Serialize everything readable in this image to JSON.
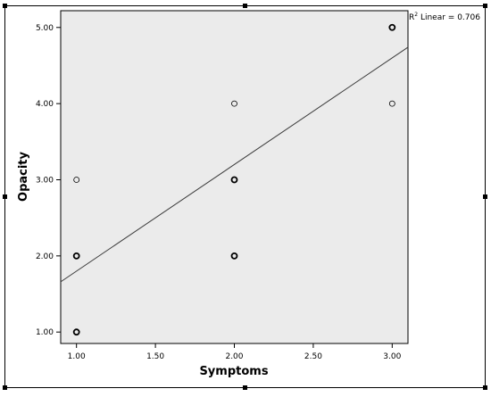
{
  "chart_data": {
    "type": "scatter",
    "xlabel": "Symptoms",
    "ylabel": "Opacity",
    "xlim": [
      0.9,
      3.1
    ],
    "ylim": [
      0.85,
      5.22
    ],
    "x_ticks": [
      "1.00",
      "1.50",
      "2.00",
      "2.50",
      "3.00"
    ],
    "y_ticks": [
      "1.00",
      "2.00",
      "3.00",
      "4.00",
      "5.00"
    ],
    "x_tick_values": [
      1.0,
      1.5,
      2.0,
      2.5,
      3.0
    ],
    "y_tick_values": [
      1.0,
      2.0,
      3.0,
      4.0,
      5.0
    ],
    "points": [
      {
        "x": 1.0,
        "y": 1.0,
        "overlap": true
      },
      {
        "x": 1.0,
        "y": 2.0,
        "overlap": true
      },
      {
        "x": 1.0,
        "y": 3.0,
        "overlap": false
      },
      {
        "x": 2.0,
        "y": 2.0,
        "overlap": true
      },
      {
        "x": 2.0,
        "y": 3.0,
        "overlap": true
      },
      {
        "x": 2.0,
        "y": 4.0,
        "overlap": false
      },
      {
        "x": 3.0,
        "y": 4.0,
        "overlap": false
      },
      {
        "x": 3.0,
        "y": 5.0,
        "overlap": true
      }
    ],
    "fit_line": {
      "intercept": 0.4,
      "slope": 1.4
    },
    "fit_label_prefix": "R",
    "fit_label_sup": "2",
    "fit_label_suffix": " Linear = 0.706",
    "grid": false,
    "plot_background": "#ebebeb",
    "frame_color": "#000000",
    "line_color": "#3a3a3a"
  }
}
